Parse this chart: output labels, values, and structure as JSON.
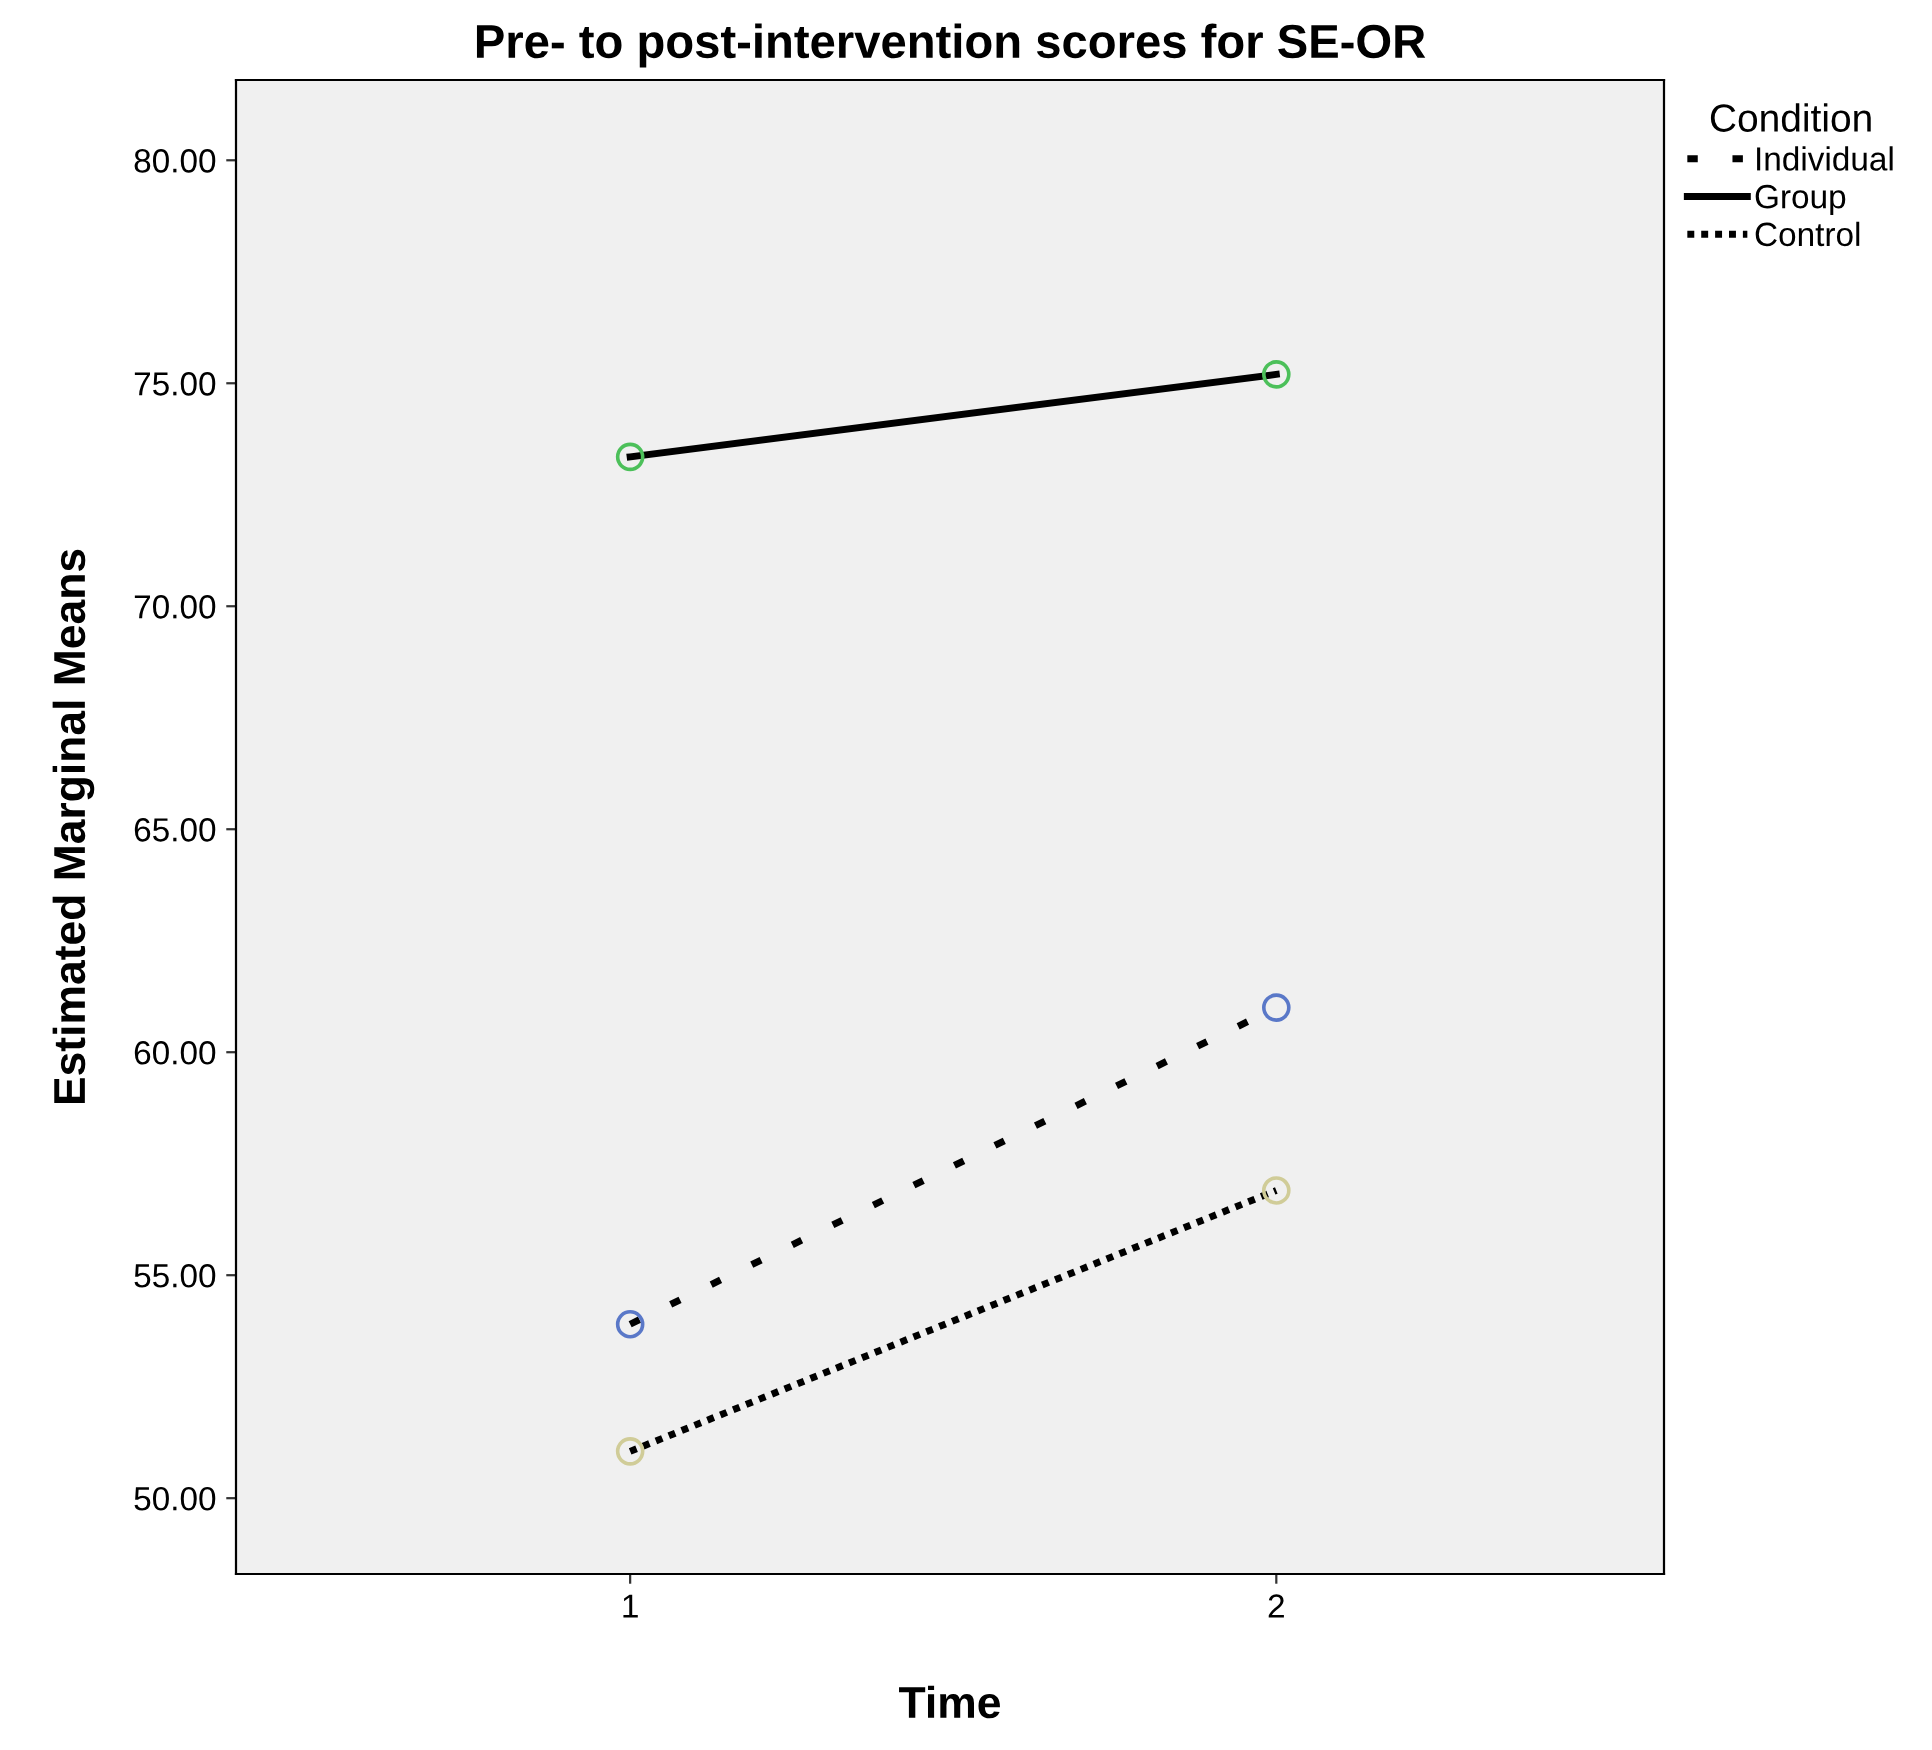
{
  "chart_data": {
    "type": "line",
    "title": "Pre- to post-intervention scores for SE-OR",
    "xlabel": "Time",
    "ylabel": "Estimated Marginal Means",
    "legend_title": "Condition",
    "categories": [
      "1",
      "2"
    ],
    "series": [
      {
        "name": "Individual",
        "color": "#000000",
        "colors": [
          "#5a78c8",
          "#5a78c8"
        ],
        "line_style": "dashed",
        "values": [
          53.9,
          61.0
        ]
      },
      {
        "name": "Group",
        "color": "#000000",
        "colors": [
          "#4cc05a",
          "#4cc05a"
        ],
        "line_style": "solid",
        "values": [
          73.35,
          75.2
        ]
      },
      {
        "name": "Control",
        "color": "#000000",
        "colors": [
          "#d0cc98",
          "#d0cc98"
        ],
        "line_style": "dotted",
        "values": [
          51.05,
          56.9
        ]
      }
    ],
    "ylim": [
      48.3,
      81.8
    ],
    "yticks": [
      {
        "value": 50,
        "label": "50.00"
      },
      {
        "value": 55,
        "label": "55.00"
      },
      {
        "value": 60,
        "label": "60.00"
      },
      {
        "value": 65,
        "label": "65.00"
      },
      {
        "value": 70,
        "label": "70.00"
      },
      {
        "value": 75,
        "label": "75.00"
      },
      {
        "value": 80,
        "label": "80.00"
      }
    ],
    "marker": "circle",
    "grid": false,
    "legend": "top right"
  }
}
